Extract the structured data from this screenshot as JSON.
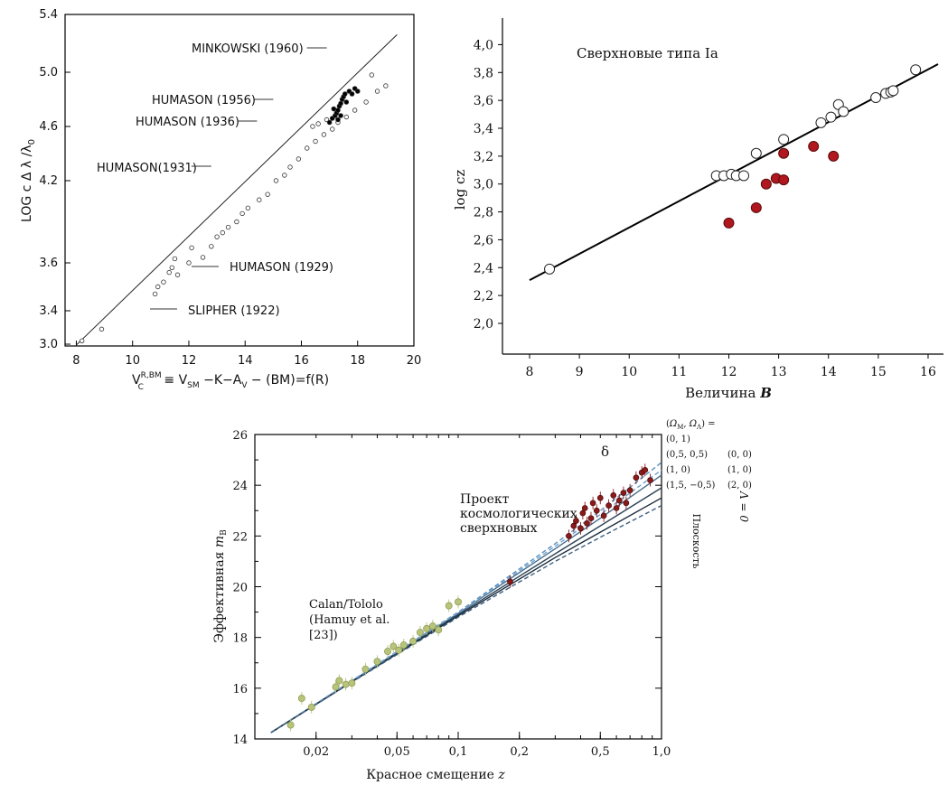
{
  "chart_data": [
    {
      "type": "scatter",
      "xlabel": "V_C^{R,BM} ≡ V_SM − K − A_V − (BM) = f(R)",
      "xlabel_parts": {
        "v": "V",
        "vsup": "R,BM",
        "vsub": "C",
        "mid": " ≡ V",
        "smsub": "SM",
        "k": " −K−A",
        "vsub2": "V",
        "tail": " − (BM)=f(R)"
      },
      "ylabel_parts": {
        "a": "LOG c Δ λ /λ",
        "sub": "0"
      },
      "xlim": [
        7.6,
        20
      ],
      "ylim": [
        2.9,
        5.4
      ],
      "x_ticks": [
        8,
        10,
        12,
        14,
        16,
        18,
        20
      ],
      "y_ticks": [
        3.0,
        3.4,
        3.6,
        4.2,
        4.6,
        5.0,
        5.4
      ],
      "y_tick_labels": [
        "3.0",
        "3.4",
        "3.6",
        "4.2",
        "4.6",
        "5.0",
        "5.4"
      ],
      "annotations": [
        {
          "text": "MINKOWSKI (1960)",
          "x": 12.1,
          "y": 5.07
        },
        {
          "text": "HUMASON (1956)",
          "x": 12.6,
          "y": 4.76
        },
        {
          "text": "HUMASON (1936)",
          "x": 11.8,
          "y": 4.6
        },
        {
          "text": "HUMASON(1931)",
          "x": 9.4,
          "y": 4.32
        },
        {
          "text": "HUMASON (1929)",
          "x": 13.2,
          "y": 3.48
        },
        {
          "text": "SLIPHER (1922)",
          "x": 11.7,
          "y": 3.16
        }
      ],
      "fit_line": [
        [
          8.0,
          2.99
        ],
        [
          19.4,
          5.26
        ]
      ],
      "series": [
        {
          "marker": "open",
          "points": [
            [
              8.2,
              3.04
            ],
            [
              8.9,
              3.18
            ],
            [
              10.8,
              3.47
            ],
            [
              10.9,
              3.5
            ],
            [
              11.1,
              3.52
            ],
            [
              11.3,
              3.56
            ],
            [
              11.4,
              3.58
            ],
            [
              11.6,
              3.55
            ],
            [
              11.5,
              3.63
            ],
            [
              12.0,
              3.6
            ],
            [
              12.1,
              3.71
            ],
            [
              12.5,
              3.64
            ],
            [
              12.8,
              3.72
            ],
            [
              13.0,
              3.79
            ],
            [
              13.2,
              3.82
            ],
            [
              13.4,
              3.86
            ],
            [
              13.7,
              3.9
            ],
            [
              13.9,
              3.96
            ],
            [
              14.1,
              4.0
            ],
            [
              14.5,
              4.06
            ],
            [
              14.8,
              4.1
            ],
            [
              15.1,
              4.2
            ],
            [
              15.4,
              4.24
            ],
            [
              15.6,
              4.3
            ],
            [
              15.9,
              4.36
            ],
            [
              16.2,
              4.44
            ],
            [
              16.5,
              4.49
            ],
            [
              16.8,
              4.54
            ],
            [
              17.1,
              4.58
            ],
            [
              16.6,
              4.62
            ],
            [
              16.4,
              4.6
            ],
            [
              16.9,
              4.65
            ],
            [
              17.3,
              4.63
            ],
            [
              17.6,
              4.67
            ],
            [
              17.9,
              4.72
            ],
            [
              18.3,
              4.78
            ],
            [
              18.7,
              4.86
            ],
            [
              19.0,
              4.9
            ],
            [
              18.5,
              4.98
            ]
          ]
        },
        {
          "marker": "filled",
          "points": [
            [
              17.0,
              4.63
            ],
            [
              17.1,
              4.66
            ],
            [
              17.2,
              4.68
            ],
            [
              17.25,
              4.7
            ],
            [
              17.3,
              4.72
            ],
            [
              17.35,
              4.75
            ],
            [
              17.4,
              4.77
            ],
            [
              17.15,
              4.73
            ],
            [
              17.45,
              4.8
            ],
            [
              17.5,
              4.82
            ],
            [
              17.55,
              4.84
            ],
            [
              17.6,
              4.78
            ],
            [
              17.7,
              4.86
            ],
            [
              17.8,
              4.84
            ],
            [
              17.9,
              4.88
            ],
            [
              18.0,
              4.86
            ],
            [
              17.3,
              4.65
            ],
            [
              17.4,
              4.68
            ]
          ]
        }
      ]
    },
    {
      "type": "scatter",
      "title": "Сверхновые типа Ia",
      "xlabel": "Величина B",
      "xlabel_parts": {
        "a": "Величина ",
        "b": "B"
      },
      "ylabel": "log cz",
      "xlim": [
        8,
        16.2
      ],
      "ylim": [
        2.0,
        4.1
      ],
      "x_ticks": [
        8,
        9,
        10,
        11,
        12,
        13,
        14,
        15,
        16
      ],
      "y_ticks": [
        2.0,
        2.2,
        2.4,
        2.6,
        2.8,
        3.0,
        3.2,
        3.4,
        3.6,
        3.8,
        4.0
      ],
      "y_tick_labels": [
        "2,0",
        "2,2",
        "2,4",
        "2,6",
        "2,8",
        "3,0",
        "3,2",
        "3,4",
        "3,6",
        "3,8",
        "4,0"
      ],
      "fit_line": [
        [
          8.0,
          2.31
        ],
        [
          16.2,
          3.86
        ]
      ],
      "series": [
        {
          "marker": "open",
          "color": "#ffffff",
          "points": [
            [
              8.4,
              2.39
            ],
            [
              11.75,
              3.06
            ],
            [
              11.9,
              3.06
            ],
            [
              12.05,
              3.07
            ],
            [
              12.15,
              3.06
            ],
            [
              12.3,
              3.06
            ],
            [
              12.55,
              3.22
            ],
            [
              13.1,
              3.32
            ],
            [
              13.85,
              3.44
            ],
            [
              14.05,
              3.48
            ],
            [
              14.2,
              3.57
            ],
            [
              14.3,
              3.52
            ],
            [
              14.95,
              3.62
            ],
            [
              15.15,
              3.65
            ],
            [
              15.25,
              3.66
            ],
            [
              15.3,
              3.67
            ],
            [
              15.75,
              3.82
            ]
          ]
        },
        {
          "marker": "filled",
          "color": "#b0171f",
          "points": [
            [
              12.0,
              2.72
            ],
            [
              12.55,
              2.83
            ],
            [
              12.75,
              3.0
            ],
            [
              12.95,
              3.04
            ],
            [
              13.1,
              3.22
            ],
            [
              13.1,
              3.03
            ],
            [
              13.7,
              3.27
            ],
            [
              14.1,
              3.2
            ]
          ]
        }
      ]
    },
    {
      "type": "scatter",
      "xlabel": "Красное смещение z",
      "xlabel_parts": {
        "a": "Красное смещение ",
        "b": "z"
      },
      "ylabel": "Эффективная m B",
      "ylabel_parts": {
        "a": "Эффективная ",
        "b": "m",
        "c": "B"
      },
      "x_scale": "log",
      "xlim": [
        0.01,
        1.0
      ],
      "ylim": [
        14,
        26
      ],
      "x_ticks": [
        0.02,
        0.05,
        0.1,
        0.2,
        0.5,
        1.0
      ],
      "x_tick_labels": [
        "0,02",
        "0,05",
        "0,1",
        "0,2",
        "0,5",
        "1,0"
      ],
      "y_ticks": [
        14,
        16,
        18,
        20,
        22,
        24,
        26
      ],
      "annotations": [
        {
          "text": "Проект"
        },
        {
          "text": "космологических"
        },
        {
          "text": "сверхновых"
        },
        {
          "text": "Calan/Tololo"
        },
        {
          "text": "(Hamuy et al."
        },
        {
          "text": "[23])"
        },
        {
          "text": "δ"
        }
      ],
      "legend": {
        "title": "(ΩM, ΩΛ) =",
        "title_parts": {
          "a": "(",
          "om": "Ω",
          "omsub": "M",
          "sep": ", ",
          "ol": "Ω",
          "olsub": "Λ",
          "b": ") ="
        },
        "flat_items": [
          "(0, 1)",
          "(0,5, 0,5)",
          "(1, 0)",
          "(1,5, −0,5)"
        ],
        "lambda0_items": [
          "(0, 0)",
          "(1, 0)",
          "(2, 0)"
        ],
        "flat_label": "Плоскость",
        "lambda0_label": "Λ = 0"
      },
      "model_curves": [
        {
          "name": "(0, 1)",
          "style": "dashed",
          "color": "#5a8fc0",
          "points": [
            [
              0.012,
              14.25
            ],
            [
              0.03,
              16.3
            ],
            [
              0.1,
              19.0
            ],
            [
              0.3,
              21.7
            ],
            [
              0.5,
              23.0
            ],
            [
              1.0,
              24.9
            ]
          ]
        },
        {
          "name": "(0,5, 0,5)",
          "style": "solid",
          "color": "#4a6d8c",
          "points": [
            [
              0.012,
              14.25
            ],
            [
              0.03,
              16.28
            ],
            [
              0.1,
              18.95
            ],
            [
              0.3,
              21.5
            ],
            [
              0.5,
              22.7
            ],
            [
              1.0,
              24.4
            ]
          ]
        },
        {
          "name": "(1, 0)",
          "style": "solid",
          "color": "#2c4458",
          "points": [
            [
              0.012,
              14.25
            ],
            [
              0.03,
              16.27
            ],
            [
              0.1,
              18.9
            ],
            [
              0.3,
              21.3
            ],
            [
              0.5,
              22.4
            ],
            [
              1.0,
              23.9
            ]
          ]
        },
        {
          "name": "(1,5, −0,5)",
          "style": "solid",
          "color": "#1c2c3c",
          "points": [
            [
              0.012,
              14.25
            ],
            [
              0.03,
              16.25
            ],
            [
              0.1,
              18.85
            ],
            [
              0.3,
              21.15
            ],
            [
              0.5,
              22.15
            ],
            [
              1.0,
              23.5
            ]
          ]
        },
        {
          "name": "(0, 0)",
          "style": "dashed",
          "color": "#6fa3cf",
          "points": [
            [
              0.012,
              14.25
            ],
            [
              0.03,
              16.29
            ],
            [
              0.1,
              18.97
            ],
            [
              0.3,
              21.6
            ],
            [
              0.5,
              22.85
            ],
            [
              1.0,
              24.6
            ]
          ]
        },
        {
          "name": "(2, 0)",
          "style": "dashed",
          "color": "#3d5f80",
          "points": [
            [
              0.012,
              14.25
            ],
            [
              0.03,
              16.24
            ],
            [
              0.1,
              18.8
            ],
            [
              0.3,
              21.0
            ],
            [
              0.5,
              21.95
            ],
            [
              1.0,
              23.2
            ]
          ]
        }
      ],
      "series": [
        {
          "name": "Calan/Tololo",
          "color": "#b8c47a",
          "points": [
            [
              0.015,
              14.55
            ],
            [
              0.017,
              15.6
            ],
            [
              0.019,
              15.25
            ],
            [
              0.025,
              16.05
            ],
            [
              0.026,
              16.3
            ],
            [
              0.028,
              16.15
            ],
            [
              0.03,
              16.2
            ],
            [
              0.035,
              16.75
            ],
            [
              0.04,
              17.05
            ],
            [
              0.045,
              17.45
            ],
            [
              0.048,
              17.65
            ],
            [
              0.051,
              17.5
            ],
            [
              0.054,
              17.7
            ],
            [
              0.06,
              17.85
            ],
            [
              0.065,
              18.2
            ],
            [
              0.07,
              18.35
            ],
            [
              0.075,
              18.45
            ],
            [
              0.08,
              18.3
            ],
            [
              0.09,
              19.25
            ],
            [
              0.1,
              19.4
            ]
          ]
        },
        {
          "name": "Проект космологических сверхновых",
          "color": "#8b1a1a",
          "points": [
            [
              0.18,
              20.2
            ],
            [
              0.35,
              22.0
            ],
            [
              0.37,
              22.4
            ],
            [
              0.38,
              22.6
            ],
            [
              0.4,
              22.3
            ],
            [
              0.41,
              22.9
            ],
            [
              0.42,
              23.1
            ],
            [
              0.43,
              22.5
            ],
            [
              0.45,
              22.7
            ],
            [
              0.46,
              23.3
            ],
            [
              0.48,
              23.0
            ],
            [
              0.5,
              23.5
            ],
            [
              0.52,
              22.8
            ],
            [
              0.55,
              23.2
            ],
            [
              0.58,
              23.6
            ],
            [
              0.6,
              23.1
            ],
            [
              0.62,
              23.4
            ],
            [
              0.65,
              23.7
            ],
            [
              0.67,
              23.3
            ],
            [
              0.7,
              23.8
            ],
            [
              0.75,
              24.3
            ],
            [
              0.8,
              24.5
            ],
            [
              0.83,
              24.6
            ],
            [
              0.88,
              24.2
            ]
          ]
        }
      ]
    }
  ]
}
